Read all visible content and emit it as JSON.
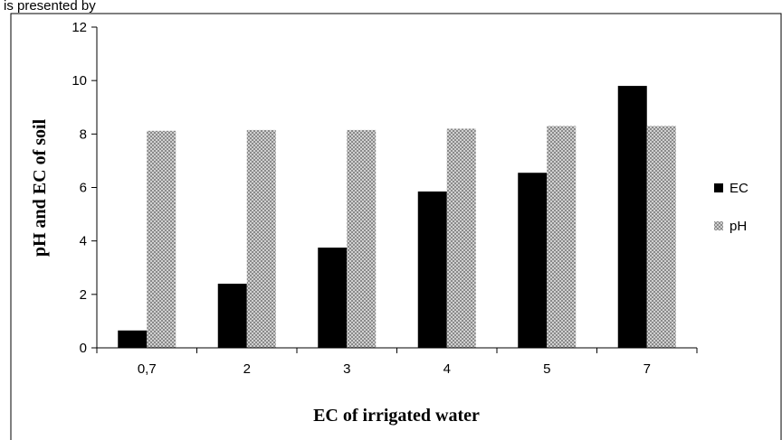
{
  "header_text": "is presented by",
  "chart_data": {
    "type": "bar",
    "categories": [
      "0,7",
      "2",
      "3",
      "4",
      "5",
      "7"
    ],
    "series": [
      {
        "name": "EC",
        "values": [
          0.65,
          2.4,
          3.75,
          5.85,
          6.55,
          9.8
        ],
        "color": "#000000",
        "pattern": "solid"
      },
      {
        "name": "pH",
        "values": [
          8.12,
          8.15,
          8.15,
          8.2,
          8.3,
          8.3
        ],
        "color": "#9a9a9a",
        "pattern": "dotted"
      }
    ],
    "title": "",
    "xlabel": "EC of irrigated water",
    "ylabel": "pH and EC of soil",
    "ylim": [
      0,
      12
    ],
    "yticks": [
      0,
      2,
      4,
      6,
      8,
      10,
      12
    ],
    "grid": false,
    "legend": "right"
  }
}
